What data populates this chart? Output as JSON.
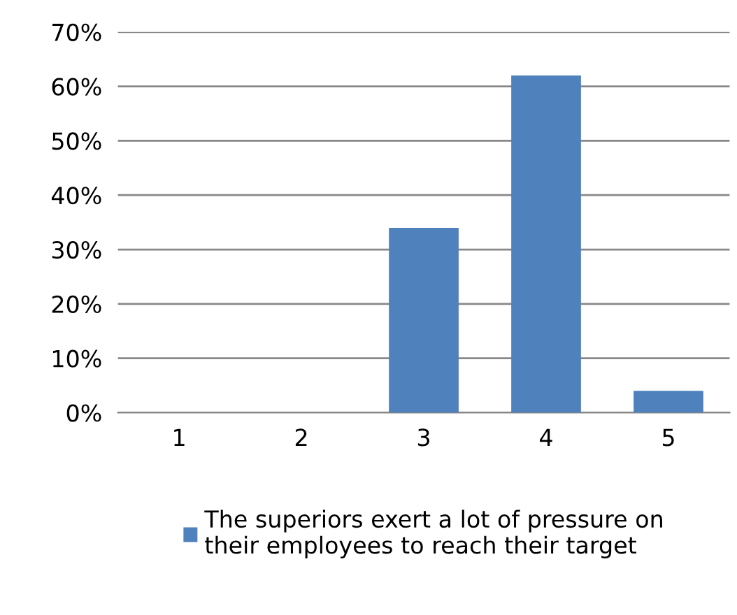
{
  "chart_data": {
    "type": "bar",
    "categories": [
      "1",
      "2",
      "3",
      "4",
      "5"
    ],
    "series": [
      {
        "name": "The superiors exert a lot of pressure on\ntheir employees to reach their target",
        "color": "#4f81bd",
        "values": [
          0,
          0,
          34,
          62,
          4
        ]
      }
    ],
    "ylim": [
      0,
      70
    ],
    "yticks": [
      {
        "value": 0,
        "label": "0%"
      },
      {
        "value": 10,
        "label": "10%"
      },
      {
        "value": 20,
        "label": "20%"
      },
      {
        "value": 30,
        "label": "30%"
      },
      {
        "value": 40,
        "label": "40%"
      },
      {
        "value": 50,
        "label": "50%"
      },
      {
        "value": 60,
        "label": "60%"
      },
      {
        "value": 70,
        "label": "70%"
      }
    ],
    "grid": "y",
    "legend": "bottom"
  }
}
